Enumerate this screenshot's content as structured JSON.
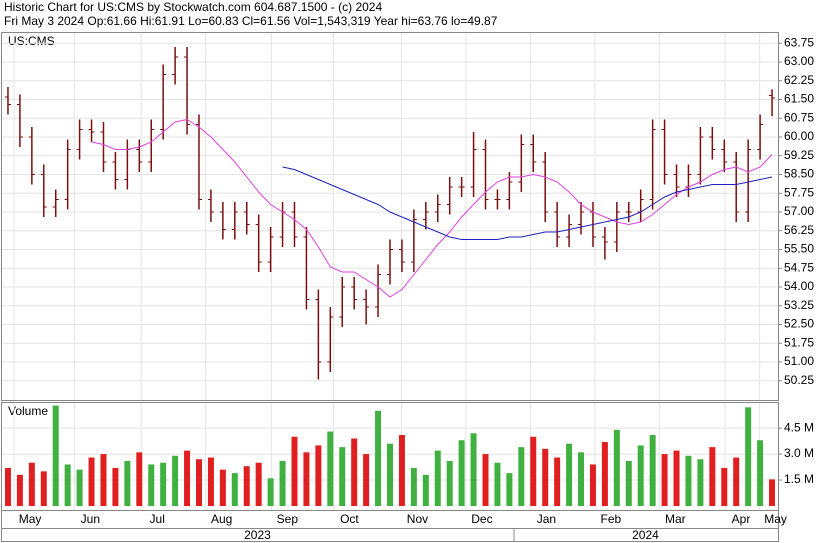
{
  "chart_data": {
    "type": "ohlc",
    "title": "Historic Chart for US:CMS by Stockwatch.com 604.687.1500 - (c) 2024",
    "subtitle": "Fri May  3 2024  Op:61.66  Hi:61.91  Lo=60.83  Cl=61.56  Vol=1,543,319  Year hi=63.76  lo=49.87",
    "symbol": "US:CMS",
    "bar_color": "#7a1010",
    "grid": true,
    "xlim": [
      -0.5,
      64.5
    ],
    "xticks": [
      {
        "value": 1.85,
        "label": "May"
      },
      {
        "value": 6.9,
        "label": "Jun"
      },
      {
        "value": 12.5,
        "label": "Jul"
      },
      {
        "value": 17.9,
        "label": "Aug"
      },
      {
        "value": 23.4,
        "label": "Sep"
      },
      {
        "value": 28.6,
        "label": "Oct"
      },
      {
        "value": 34.3,
        "label": "Nov"
      },
      {
        "value": 39.7,
        "label": "Dec"
      },
      {
        "value": 45.1,
        "label": "Jan"
      },
      {
        "value": 50.5,
        "label": "Feb"
      },
      {
        "value": 55.9,
        "label": "Mar"
      },
      {
        "value": 61.4,
        "label": "Apr"
      },
      {
        "value": 64.3,
        "label": "May"
      }
    ],
    "years": [
      {
        "value": 20.9,
        "label": "2023"
      },
      {
        "value": 53.4,
        "label": "2024"
      }
    ],
    "ylim": [
      49.48,
      64.16
    ],
    "yticks": [
      50.25,
      {
        "value": 51,
        "label": "51.00"
      },
      51.75,
      {
        "value": 52.5,
        "label": "52.50"
      },
      53.25,
      {
        "value": 54,
        "label": "54.00"
      },
      54.75,
      {
        "value": 55.5,
        "label": "55.50"
      },
      56.25,
      {
        "value": 57,
        "label": "57.00"
      },
      57.75,
      {
        "value": 58.5,
        "label": "58.50"
      },
      59.25,
      {
        "value": 60,
        "label": "60.00"
      },
      60.75,
      {
        "value": 61.5,
        "label": "61.50"
      },
      62.25,
      {
        "value": 63,
        "label": "63.00"
      },
      63.75
    ],
    "ohlc": {
      "open": [
        61.6,
        61.3,
        60.0,
        58.5,
        57.2,
        57.5,
        59.5,
        60.3,
        60.2,
        59.0,
        58.3,
        59.5,
        59.0,
        60.3,
        62.5,
        63.2,
        60.5,
        57.5,
        57.0,
        56.3,
        57.0,
        56.5,
        55.0,
        56.0,
        57.0,
        56.0,
        53.5,
        51.0,
        52.8,
        54.0,
        53.5,
        53.2,
        54.5,
        55.5,
        55.0,
        56.7,
        57.0,
        57.3,
        58.0,
        58.0,
        59.5,
        57.5,
        57.5,
        58.2,
        59.7,
        59.0,
        57.0,
        56.0,
        56.5,
        57.0,
        56.0,
        55.8,
        57.0,
        57.0,
        57.5,
        60.3,
        58.5,
        58.0,
        58.5,
        60.0,
        59.5,
        59.0,
        57.0,
        59.5,
        61.66
      ],
      "high": [
        62.0,
        61.7,
        60.4,
        58.9,
        57.9,
        59.9,
        60.7,
        60.7,
        60.6,
        59.4,
        59.9,
        59.9,
        60.7,
        62.9,
        63.6,
        63.6,
        60.9,
        57.9,
        57.4,
        57.4,
        57.4,
        56.9,
        56.4,
        57.4,
        57.4,
        56.4,
        53.9,
        53.2,
        54.4,
        54.4,
        53.9,
        54.9,
        55.9,
        55.9,
        57.1,
        57.4,
        57.7,
        58.4,
        58.4,
        60.2,
        59.9,
        57.9,
        58.6,
        60.1,
        60.1,
        59.4,
        57.4,
        56.9,
        57.4,
        57.4,
        56.4,
        57.4,
        57.4,
        57.9,
        60.7,
        60.7,
        58.9,
        58.9,
        60.4,
        60.4,
        59.9,
        59.4,
        59.9,
        60.9,
        61.91
      ],
      "low": [
        60.9,
        59.6,
        58.1,
        56.8,
        56.8,
        57.1,
        59.1,
        59.8,
        58.6,
        57.9,
        57.9,
        58.6,
        58.6,
        59.9,
        62.1,
        60.1,
        57.1,
        56.6,
        55.9,
        55.9,
        56.1,
        54.6,
        54.6,
        55.6,
        55.6,
        53.1,
        50.3,
        50.6,
        52.4,
        53.1,
        52.5,
        52.8,
        54.1,
        54.6,
        54.6,
        56.3,
        56.6,
        56.9,
        57.6,
        57.6,
        57.1,
        57.1,
        57.1,
        57.8,
        58.6,
        56.6,
        55.6,
        55.6,
        56.1,
        55.6,
        55.1,
        55.4,
        56.6,
        56.6,
        57.1,
        58.1,
        57.6,
        57.6,
        58.1,
        59.1,
        58.6,
        56.6,
        56.6,
        59.1,
        60.83
      ],
      "close": [
        61.3,
        60.0,
        58.5,
        57.2,
        57.5,
        59.5,
        60.3,
        60.2,
        59.0,
        58.3,
        59.5,
        59.0,
        60.3,
        62.5,
        63.2,
        60.5,
        57.5,
        57.0,
        56.3,
        57.0,
        56.5,
        55.0,
        56.0,
        57.0,
        56.0,
        53.5,
        51.0,
        52.8,
        54.0,
        53.5,
        53.2,
        54.5,
        55.5,
        55.0,
        56.7,
        57.0,
        57.3,
        58.0,
        58.0,
        59.5,
        57.5,
        57.5,
        58.2,
        59.7,
        59.0,
        57.0,
        56.0,
        56.5,
        57.0,
        56.0,
        55.8,
        57.0,
        57.0,
        57.5,
        60.3,
        58.5,
        58.0,
        58.5,
        60.0,
        59.5,
        59.0,
        57.0,
        59.5,
        60.5,
        61.56
      ]
    },
    "moving_averages": [
      {
        "color": "#e040e0",
        "values": [
          null,
          null,
          null,
          null,
          null,
          null,
          null,
          59.8,
          59.7,
          59.5,
          59.5,
          59.6,
          59.8,
          60.2,
          60.6,
          60.7,
          60.4,
          60.0,
          59.5,
          59.0,
          58.4,
          57.8,
          57.3,
          57.0,
          56.7,
          56.3,
          55.6,
          54.8,
          54.6,
          54.6,
          54.3,
          54.0,
          53.6,
          53.9,
          54.5,
          55.1,
          55.7,
          56.2,
          56.8,
          57.3,
          57.8,
          58.2,
          58.4,
          58.4,
          58.5,
          58.4,
          58.2,
          57.8,
          57.3,
          57.0,
          56.8,
          56.6,
          56.5,
          56.6,
          56.9,
          57.3,
          57.7,
          58.0,
          58.2,
          58.5,
          58.7,
          58.8,
          58.6,
          58.8,
          59.3
        ]
      },
      {
        "color": "#2020c0",
        "values": [
          null,
          null,
          null,
          null,
          null,
          null,
          null,
          null,
          null,
          null,
          null,
          null,
          null,
          null,
          null,
          null,
          null,
          null,
          null,
          null,
          null,
          null,
          null,
          58.8,
          58.7,
          58.5,
          58.3,
          58.1,
          57.9,
          57.7,
          57.5,
          57.3,
          57.0,
          56.8,
          56.6,
          56.4,
          56.2,
          56.0,
          55.9,
          55.9,
          55.9,
          55.9,
          56.0,
          56.0,
          56.1,
          56.2,
          56.2,
          56.3,
          56.4,
          56.5,
          56.6,
          56.7,
          56.8,
          57.0,
          57.3,
          57.6,
          57.8,
          57.9,
          58.0,
          58.1,
          58.1,
          58.1,
          58.2,
          58.3,
          58.4
        ]
      }
    ],
    "volume": {
      "title": "Volume",
      "up_color": "#40b040",
      "down_color": "#e02020",
      "ylim": [
        0,
        5.95
      ],
      "yticks": [
        {
          "value": 1.5,
          "label": "1.5 M"
        },
        {
          "value": 3.0,
          "label": "3.0 M"
        },
        {
          "value": 4.5,
          "label": "4.5 M"
        }
      ],
      "values": [
        2.2,
        1.8,
        2.5,
        2.0,
        5.8,
        2.4,
        2.1,
        2.8,
        3.0,
        2.2,
        2.6,
        3.1,
        2.4,
        2.5,
        2.9,
        3.2,
        2.7,
        2.8,
        2.1,
        1.9,
        2.3,
        2.5,
        1.6,
        2.6,
        4.0,
        3.1,
        3.5,
        4.3,
        3.4,
        3.9,
        3.0,
        5.5,
        3.6,
        4.1,
        2.2,
        1.8,
        3.2,
        2.6,
        3.8,
        4.2,
        3.0,
        2.5,
        1.9,
        3.4,
        4.0,
        3.3,
        2.8,
        3.6,
        3.1,
        2.4,
        3.7,
        4.4,
        2.6,
        3.5,
        4.1,
        3.0,
        3.2,
        2.9,
        2.7,
        3.4,
        2.2,
        2.8,
        5.7,
        3.8,
        1.54
      ]
    }
  }
}
